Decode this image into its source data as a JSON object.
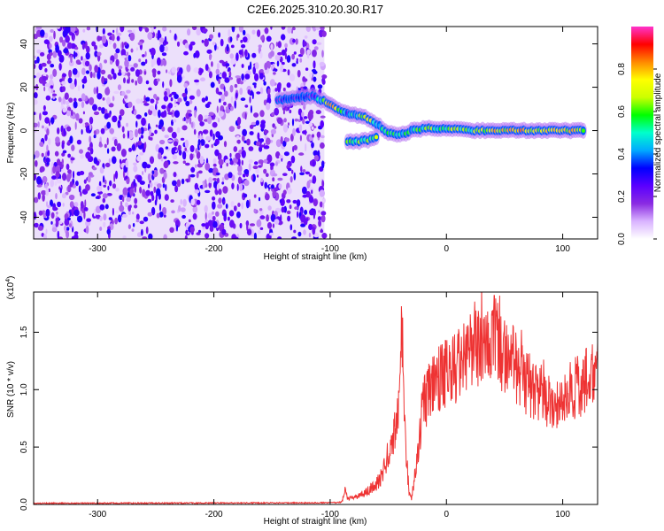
{
  "figure": {
    "title": "C2E6.2025.310.20.30.R17"
  },
  "chart_data": [
    {
      "type": "heatmap",
      "xlabel": "Height of straight line (km)",
      "ylabel": "Frequency (Hz)",
      "xlim": [
        -355,
        130
      ],
      "ylim": [
        -50,
        48
      ],
      "x_ticks": [
        -300,
        -200,
        -100,
        0,
        100
      ],
      "y_ticks": [
        -40,
        -20,
        0,
        20,
        40
      ],
      "colorbar": {
        "label": "Normalized spectral amplitude",
        "range": [
          0,
          1
        ],
        "ticks": [
          0.0,
          0.2,
          0.4,
          0.6,
          0.8
        ],
        "colormap": [
          "#ffffff",
          "#d9b3ff",
          "#8a2be2",
          "#5a00ff",
          "#0000ff",
          "#00aaff",
          "#00ffcc",
          "#00ff00",
          "#ccff00",
          "#ffff00",
          "#ff8800",
          "#ff0000",
          "#ff33cc"
        ]
      },
      "noise_region": {
        "x": [
          -355,
          -105
        ],
        "y": [
          -50,
          48
        ]
      },
      "signal_track": [
        {
          "x": -145,
          "y": 14,
          "amp": 0.25
        },
        {
          "x": -130,
          "y": 15,
          "amp": 0.3
        },
        {
          "x": -115,
          "y": 16,
          "amp": 0.25
        },
        {
          "x": -103,
          "y": 13,
          "amp": 0.75
        },
        {
          "x": -95,
          "y": 10,
          "amp": 0.7
        },
        {
          "x": -85,
          "y": 8,
          "amp": 0.35
        },
        {
          "x": -70,
          "y": 6,
          "amp": 0.7
        },
        {
          "x": -60,
          "y": 3,
          "amp": 0.5
        },
        {
          "x": -50,
          "y": -1,
          "amp": 0.5
        },
        {
          "x": -40,
          "y": -2,
          "amp": 0.45
        },
        {
          "x": -30,
          "y": 0,
          "amp": 0.5
        },
        {
          "x": -20,
          "y": 1,
          "amp": 0.6
        },
        {
          "x": -10,
          "y": 1,
          "amp": 0.55
        },
        {
          "x": 0,
          "y": 1,
          "amp": 0.6
        },
        {
          "x": 10,
          "y": 1,
          "amp": 0.65
        },
        {
          "x": 20,
          "y": 0,
          "amp": 0.6
        },
        {
          "x": 40,
          "y": 0,
          "amp": 0.7
        },
        {
          "x": 60,
          "y": 0,
          "amp": 0.75
        },
        {
          "x": 80,
          "y": 0,
          "amp": 0.7
        },
        {
          "x": 100,
          "y": 0,
          "amp": 0.7
        },
        {
          "x": 120,
          "y": 0,
          "amp": 0.7
        }
      ],
      "secondary_track": [
        {
          "x": -85,
          "y": -5,
          "amp": 0.55
        },
        {
          "x": -75,
          "y": -5,
          "amp": 0.6
        },
        {
          "x": -65,
          "y": -4,
          "amp": 0.5
        },
        {
          "x": -58,
          "y": -3,
          "amp": 0.6
        }
      ]
    },
    {
      "type": "line",
      "xlabel": "Height of straight line (km)",
      "ylabel": "SNR (10 * v/v)",
      "y_multiplier_label": "(x10",
      "y_multiplier_exp": "4",
      "y_multiplier_close": ")",
      "xlim": [
        -355,
        130
      ],
      "ylim": [
        0,
        1.85
      ],
      "x_ticks": [
        -300,
        -200,
        -100,
        0,
        100
      ],
      "y_ticks": [
        "0.0",
        "0.5",
        "1.0",
        "1.5"
      ],
      "series": [
        {
          "color": "#ee3333",
          "x": [
            -355,
            -100,
            -90,
            -87,
            -85,
            -80,
            -70,
            -60,
            -55,
            -50,
            -45,
            -40,
            -38,
            -35,
            -32,
            -30,
            -25,
            -20,
            -15,
            -10,
            -5,
            0,
            10,
            20,
            30,
            35,
            40,
            45,
            50,
            60,
            70,
            80,
            90,
            95,
            100,
            110,
            120,
            130
          ],
          "y": [
            0.01,
            0.015,
            0.02,
            0.12,
            0.05,
            0.06,
            0.1,
            0.18,
            0.28,
            0.42,
            0.6,
            1.0,
            1.55,
            0.5,
            0.1,
            0.05,
            0.4,
            0.85,
            1.0,
            1.05,
            1.1,
            1.15,
            1.2,
            1.3,
            1.42,
            1.48,
            1.45,
            1.38,
            1.3,
            1.2,
            1.05,
            0.95,
            0.92,
            0.9,
            0.93,
            1.0,
            1.08,
            1.15
          ]
        }
      ]
    }
  ]
}
